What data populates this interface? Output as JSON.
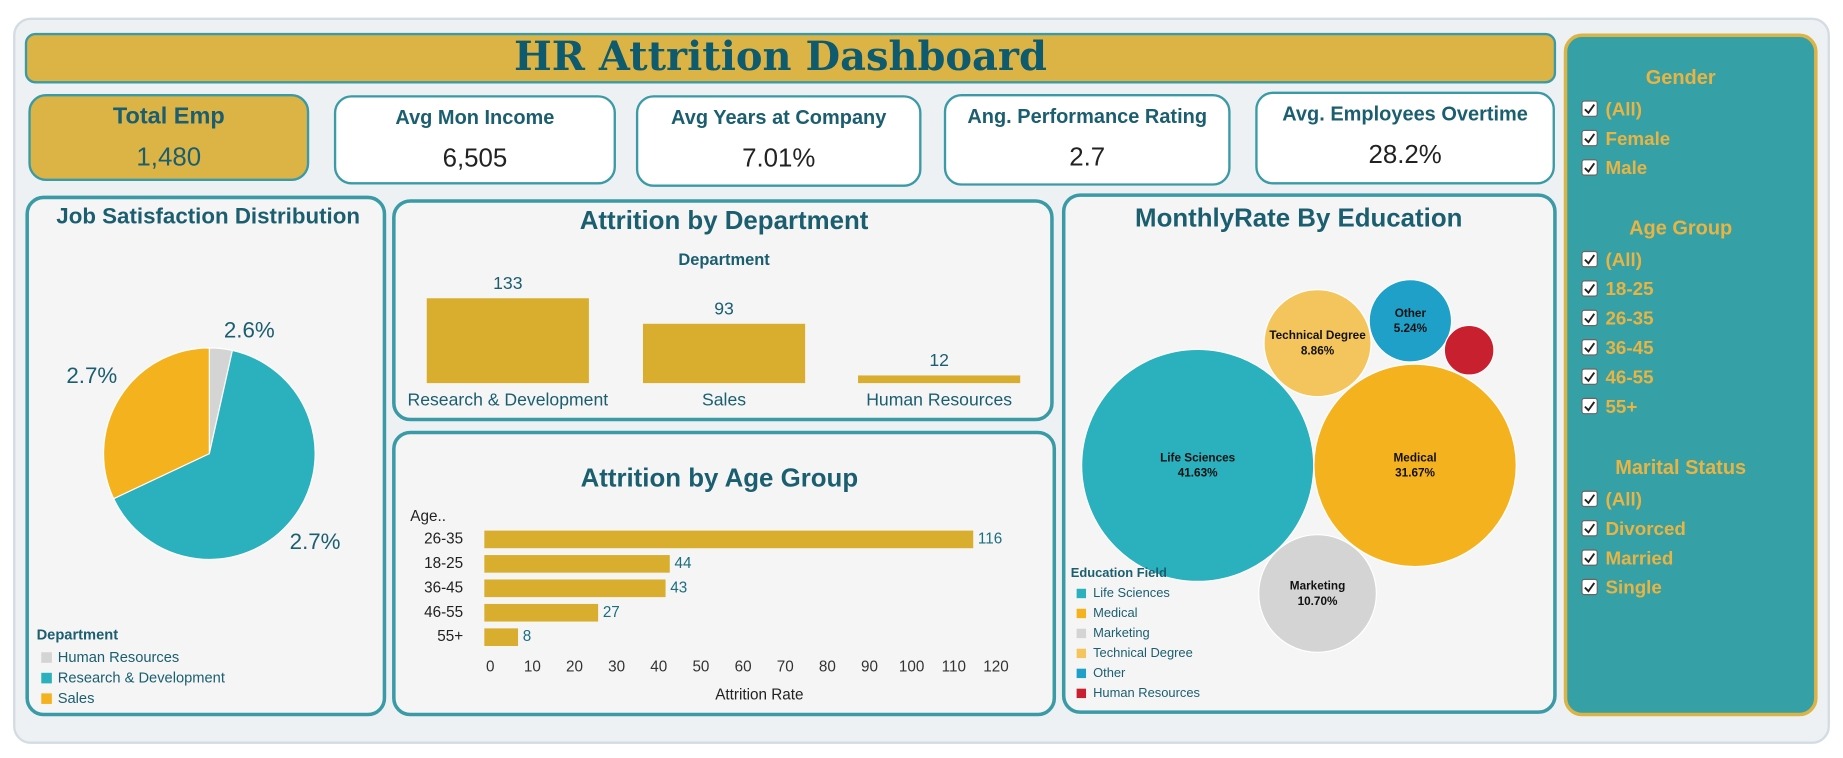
{
  "header": {
    "title": "HR Attrition Dashboard"
  },
  "kpis": [
    {
      "label": "Total Emp",
      "value": "1,480"
    },
    {
      "label": "Avg Mon Income",
      "value": "6,505"
    },
    {
      "label": "Avg Years at Company",
      "value": "7.01%"
    },
    {
      "label": "Ang. Performance Rating",
      "value": "2.7"
    },
    {
      "label": "Avg. Employees Overtime",
      "value": "28.2%"
    }
  ],
  "chart_data": [
    {
      "type": "pie",
      "title": "Job Satisfaction Distribution",
      "legend_title": "Department",
      "categories": [
        "Human Resources",
        "Research & Development",
        "Sales"
      ],
      "values": [
        3.5,
        64.5,
        32
      ],
      "colors": [
        "#d4d4d4",
        "#2bb0bd",
        "#f5b21f"
      ],
      "annotations": [
        "2.6%",
        "2.7%",
        "2.7%"
      ]
    },
    {
      "type": "bar",
      "title": "Attrition by Department",
      "x_label": "Department",
      "categories": [
        "Research & Development",
        "Sales",
        "Human Resources"
      ],
      "values": [
        133,
        93,
        12
      ],
      "color": "#d9ae2f",
      "ylim": [
        0,
        140
      ]
    },
    {
      "type": "hbar",
      "title": "Attrition by Age Group",
      "y_label": "Age..",
      "x_label": "Attrition Rate",
      "categories": [
        "26-35",
        "18-25",
        "36-45",
        "46-55",
        "55+"
      ],
      "values": [
        116,
        44,
        43,
        27,
        8
      ],
      "color": "#d9ae2f",
      "xlim": [
        0,
        125
      ],
      "xticks": [
        0,
        10,
        20,
        30,
        40,
        50,
        60,
        70,
        80,
        90,
        100,
        110,
        120
      ]
    },
    {
      "type": "bubble",
      "title": "MonthlyRate By Education",
      "legend_title": "Education Field",
      "categories": [
        "Life Sciences",
        "Medical",
        "Marketing",
        "Technical Degree",
        "Other",
        "Human Resources"
      ],
      "values": [
        41.63,
        31.67,
        10.7,
        8.86,
        5.24,
        1.9
      ],
      "value_labels": [
        "41.63%",
        "31.67%",
        "10.70%",
        "8.86%",
        "5.24%",
        null
      ],
      "colors": [
        "#2bb0bd",
        "#f5b21f",
        "#d4d4d4",
        "#f4c55c",
        "#1fa0c8",
        "#c8202f"
      ]
    }
  ],
  "filters": [
    {
      "title": "Gender",
      "options": [
        "(All)",
        "Female",
        "Male"
      ]
    },
    {
      "title": "Age Group",
      "options": [
        "(All)",
        "18-25",
        "26-35",
        "36-45",
        "46-55",
        "55+"
      ]
    },
    {
      "title": "Marital Status",
      "options": [
        "(All)",
        "Divorced",
        "Married",
        "Single"
      ]
    }
  ]
}
